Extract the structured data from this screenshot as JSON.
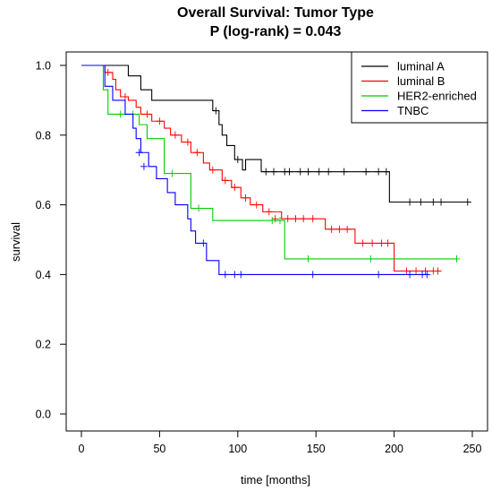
{
  "chart_data": {
    "type": "line",
    "title": "Overall Survival: Tumor Type",
    "subtitle": "P (log-rank) = 0.043",
    "xlabel": "time [months]",
    "ylabel": "survival",
    "xlim": [
      0,
      250
    ],
    "ylim": [
      0,
      1
    ],
    "xticks": [
      "0",
      "50",
      "100",
      "150",
      "200",
      "250"
    ],
    "yticks": [
      "0.0",
      "0.2",
      "0.4",
      "0.6",
      "0.8",
      "1.0"
    ],
    "grid": false,
    "legend_position": "top-right",
    "series": [
      {
        "name": "luminal A",
        "color": "#000000",
        "steps": [
          [
            0,
            1.0
          ],
          [
            30,
            0.97
          ],
          [
            38,
            0.93
          ],
          [
            45,
            0.9
          ],
          [
            84,
            0.87
          ],
          [
            88,
            0.83
          ],
          [
            90,
            0.8
          ],
          [
            93,
            0.77
          ],
          [
            98,
            0.73
          ],
          [
            103,
            0.7
          ],
          [
            105,
            0.73
          ],
          [
            110,
            0.73
          ],
          [
            115,
            0.695
          ],
          [
            197,
            0.608
          ],
          [
            247,
            0.608
          ]
        ],
        "censored": [
          [
            86,
            0.87
          ],
          [
            100,
            0.73
          ],
          [
            118,
            0.695
          ],
          [
            123,
            0.695
          ],
          [
            130,
            0.695
          ],
          [
            133,
            0.695
          ],
          [
            140,
            0.695
          ],
          [
            145,
            0.695
          ],
          [
            152,
            0.695
          ],
          [
            158,
            0.695
          ],
          [
            168,
            0.695
          ],
          [
            182,
            0.695
          ],
          [
            190,
            0.695
          ],
          [
            195,
            0.695
          ],
          [
            210,
            0.608
          ],
          [
            217,
            0.608
          ],
          [
            225,
            0.608
          ],
          [
            230,
            0.608
          ],
          [
            247,
            0.608
          ]
        ]
      },
      {
        "name": "luminal B",
        "color": "#ff0000",
        "steps": [
          [
            0,
            1.0
          ],
          [
            15,
            0.98
          ],
          [
            20,
            0.96
          ],
          [
            22,
            0.93
          ],
          [
            25,
            0.91
          ],
          [
            30,
            0.9
          ],
          [
            35,
            0.88
          ],
          [
            38,
            0.86
          ],
          [
            45,
            0.84
          ],
          [
            53,
            0.82
          ],
          [
            57,
            0.8
          ],
          [
            64,
            0.78
          ],
          [
            70,
            0.75
          ],
          [
            78,
            0.72
          ],
          [
            82,
            0.7
          ],
          [
            90,
            0.67
          ],
          [
            96,
            0.65
          ],
          [
            102,
            0.62
          ],
          [
            108,
            0.6
          ],
          [
            116,
            0.58
          ],
          [
            128,
            0.56
          ],
          [
            156,
            0.53
          ],
          [
            175,
            0.49
          ],
          [
            200,
            0.41
          ],
          [
            230,
            0.41
          ]
        ],
        "censored": [
          [
            17,
            0.98
          ],
          [
            28,
            0.91
          ],
          [
            42,
            0.86
          ],
          [
            50,
            0.84
          ],
          [
            60,
            0.8
          ],
          [
            68,
            0.78
          ],
          [
            74,
            0.75
          ],
          [
            84,
            0.7
          ],
          [
            92,
            0.67
          ],
          [
            98,
            0.65
          ],
          [
            105,
            0.62
          ],
          [
            112,
            0.6
          ],
          [
            120,
            0.58
          ],
          [
            124,
            0.56
          ],
          [
            132,
            0.56
          ],
          [
            137,
            0.56
          ],
          [
            142,
            0.56
          ],
          [
            148,
            0.56
          ],
          [
            160,
            0.53
          ],
          [
            165,
            0.53
          ],
          [
            170,
            0.53
          ],
          [
            180,
            0.49
          ],
          [
            186,
            0.49
          ],
          [
            192,
            0.49
          ],
          [
            196,
            0.49
          ],
          [
            208,
            0.41
          ],
          [
            214,
            0.41
          ],
          [
            220,
            0.41
          ],
          [
            225,
            0.41
          ],
          [
            228,
            0.41
          ]
        ]
      },
      {
        "name": "HER2-enriched",
        "color": "#00cc00",
        "steps": [
          [
            0,
            1.0
          ],
          [
            14,
            0.93
          ],
          [
            17,
            0.86
          ],
          [
            37,
            0.83
          ],
          [
            42,
            0.79
          ],
          [
            53,
            0.69
          ],
          [
            70,
            0.59
          ],
          [
            84,
            0.555
          ],
          [
            130,
            0.445
          ],
          [
            240,
            0.445
          ]
        ],
        "censored": [
          [
            25,
            0.86
          ],
          [
            33,
            0.86
          ],
          [
            58,
            0.69
          ],
          [
            75,
            0.59
          ],
          [
            122,
            0.555
          ],
          [
            127,
            0.555
          ],
          [
            145,
            0.445
          ],
          [
            185,
            0.445
          ],
          [
            240,
            0.445
          ]
        ]
      },
      {
        "name": "TNBC",
        "color": "#0000ff",
        "steps": [
          [
            0,
            1.0
          ],
          [
            15,
            0.94
          ],
          [
            20,
            0.9
          ],
          [
            28,
            0.86
          ],
          [
            33,
            0.82
          ],
          [
            35,
            0.79
          ],
          [
            38,
            0.75
          ],
          [
            43,
            0.71
          ],
          [
            48,
            0.675
          ],
          [
            55,
            0.635
          ],
          [
            60,
            0.6
          ],
          [
            68,
            0.56
          ],
          [
            70,
            0.525
          ],
          [
            73,
            0.49
          ],
          [
            80,
            0.44
          ],
          [
            88,
            0.4
          ],
          [
            222,
            0.4
          ]
        ],
        "censored": [
          [
            37,
            0.75
          ],
          [
            40,
            0.71
          ],
          [
            78,
            0.49
          ],
          [
            92,
            0.4
          ],
          [
            98,
            0.4
          ],
          [
            102,
            0.4
          ],
          [
            148,
            0.4
          ],
          [
            190,
            0.4
          ],
          [
            210,
            0.4
          ],
          [
            218,
            0.4
          ],
          [
            221,
            0.4
          ]
        ]
      }
    ]
  }
}
